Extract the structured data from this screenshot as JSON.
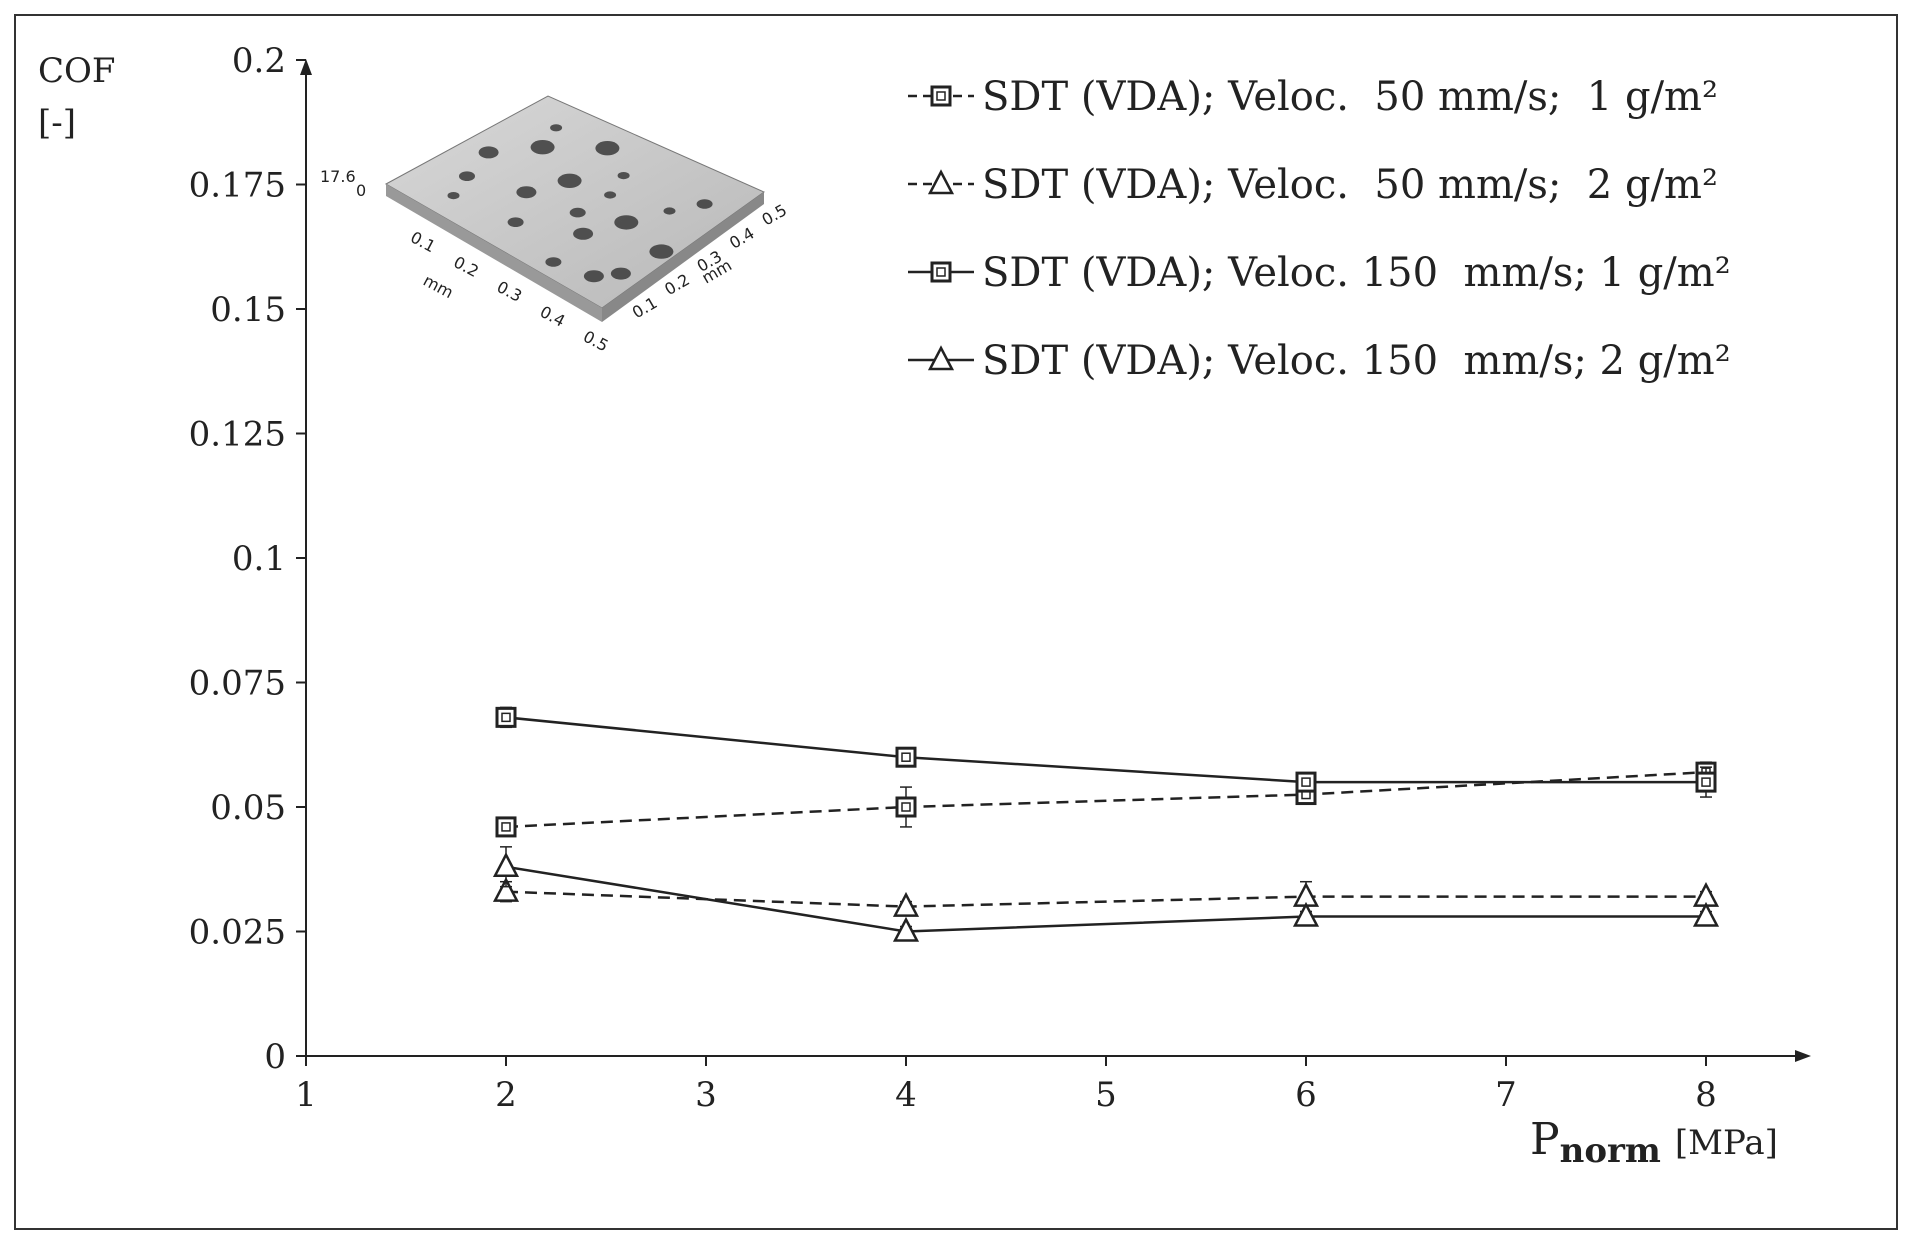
{
  "chart_data": {
    "type": "line",
    "y_title": "COF",
    "y_unit": "[-]",
    "x_title_main": "P",
    "x_title_sub": "norm",
    "x_unit": "[MPa]",
    "xlim": [
      1,
      8.4
    ],
    "ylim": [
      0,
      0.2
    ],
    "xticks": [
      "1",
      "2",
      "3",
      "4",
      "5",
      "6",
      "7",
      "8"
    ],
    "yticks": [
      "0",
      "0.025",
      "0.05",
      "0.075",
      "0.1",
      "0.125",
      "0.15",
      "0.175",
      "0.2"
    ],
    "x": [
      2,
      4,
      6,
      8
    ],
    "series": [
      {
        "name": "SDT (VDA); Veloc.  50 mm/s;  1 g/m²",
        "marker": "square",
        "dash": "dashed",
        "values": [
          0.046,
          0.05,
          0.0525,
          0.057
        ],
        "err": [
          0.001,
          0.004,
          0.0015,
          0.002
        ]
      },
      {
        "name": "SDT (VDA); Veloc.  50 mm/s;  2 g/m²",
        "marker": "triangle",
        "dash": "dashed",
        "values": [
          0.033,
          0.03,
          0.032,
          0.032
        ],
        "err": [
          0.002,
          0.001,
          0.003,
          0.001
        ]
      },
      {
        "name": "SDT (VDA); Veloc. 150  mm/s; 1 g/m²",
        "marker": "square",
        "dash": "solid",
        "values": [
          0.068,
          0.06,
          0.055,
          0.055
        ],
        "err": [
          0.002,
          0.001,
          0.001,
          0.003
        ]
      },
      {
        "name": "SDT (VDA); Veloc. 150  mm/s; 2 g/m²",
        "marker": "triangle",
        "dash": "solid",
        "values": [
          0.038,
          0.025,
          0.028,
          0.028
        ],
        "err": [
          0.004,
          0.001,
          0.001,
          0.001
        ]
      }
    ],
    "legend_position": "top-right",
    "inset": {
      "description": "3D surface topography",
      "z_label": "17.6",
      "z_zero": "0",
      "axis_unit": "mm",
      "ticks_left": [
        "0.1",
        "0.2",
        "0.3",
        "0.4",
        "0.5"
      ],
      "ticks_right": [
        "0.1",
        "0.2",
        "0.3",
        "0.4",
        "0.5"
      ]
    }
  }
}
